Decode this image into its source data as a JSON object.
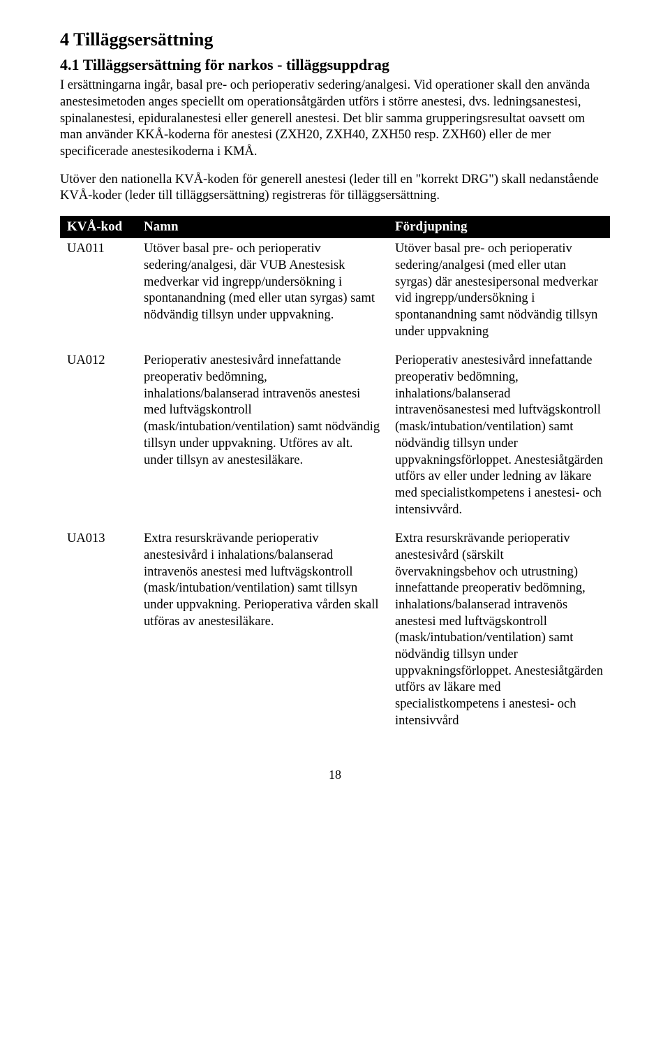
{
  "headings": {
    "h1": "4 Tilläggsersättning",
    "h2": "4.1 Tilläggsersättning för narkos - tilläggsuppdrag"
  },
  "paragraphs": {
    "p1": "I ersättningarna ingår, basal pre- och perioperativ sedering/analgesi. Vid operationer skall den använda anestesimetoden anges speciellt om operationsåtgärden utförs i större anestesi, dvs. ledningsanestesi, spinalanestesi, epiduralanestesi eller generell anestesi. Det blir samma grupperingsresultat oavsett om man använder KKÅ-koderna för anestesi (ZXH20, ZXH40, ZXH50 resp. ZXH60) eller de mer specificerade anestesikoderna i KMÅ.",
    "p2": "Utöver den nationella KVÅ-koden för generell anestesi (leder till en \"korrekt DRG\") skall nedanstående KVÅ-koder (leder till tilläggsersättning) registreras för tilläggsersättning."
  },
  "table": {
    "headers": {
      "code": "KVÅ-kod",
      "name": "Namn",
      "deep": "Fördjupning"
    },
    "rows": [
      {
        "code": "UA011",
        "name": "Utöver basal pre- och perioperativ sedering/analgesi, där VUB Anestesisk medverkar vid ingrepp/undersökning i spontanandning (med eller utan syrgas) samt nödvändig tillsyn under uppvakning.",
        "deep": "Utöver basal pre- och perioperativ sedering/analgesi (med eller utan syrgas) där anestesipersonal medverkar vid ingrepp/undersökning i spontanandning samt nödvändig tillsyn under uppvakning"
      },
      {
        "code": "UA012",
        "name": "Perioperativ anestesivård innefattande preoperativ bedömning, inhalations/balanserad intravenös anestesi med luftvägskontroll (mask/intubation/ventilation) samt nödvändig tillsyn under uppvakning. Utföres av alt. under tillsyn av anestesiläkare.",
        "deep": "Perioperativ anestesivård innefattande preoperativ bedömning, inhalations/balanserad intravenösanestesi med luftvägskontroll (mask/intubation/ventilation) samt nödvändig tillsyn under uppvakningsförloppet. Anestesiåtgärden utförs av eller under ledning av läkare med specialistkompetens i anestesi- och intensivvård."
      },
      {
        "code": "UA013",
        "name": "Extra resurskrävande perioperativ anestesivård i inhalations/balanserad intravenös anestesi med luftvägskontroll (mask/intubation/ventilation) samt tillsyn under uppvakning. Perioperativa vården skall utföras av anestesiläkare.",
        "deep": "Extra resurskrävande perioperativ anestesivård (särskilt övervakningsbehov och utrustning) innefattande preoperativ bedömning, inhalations/balanserad intravenös anestesi med luftvägskontroll (mask/intubation/ventilation) samt nödvändig tillsyn under uppvakningsförloppet. Anestesiåtgärden utförs av läkare med specialistkompetens i anestesi- och intensivvård"
      }
    ]
  },
  "pageNumber": "18"
}
